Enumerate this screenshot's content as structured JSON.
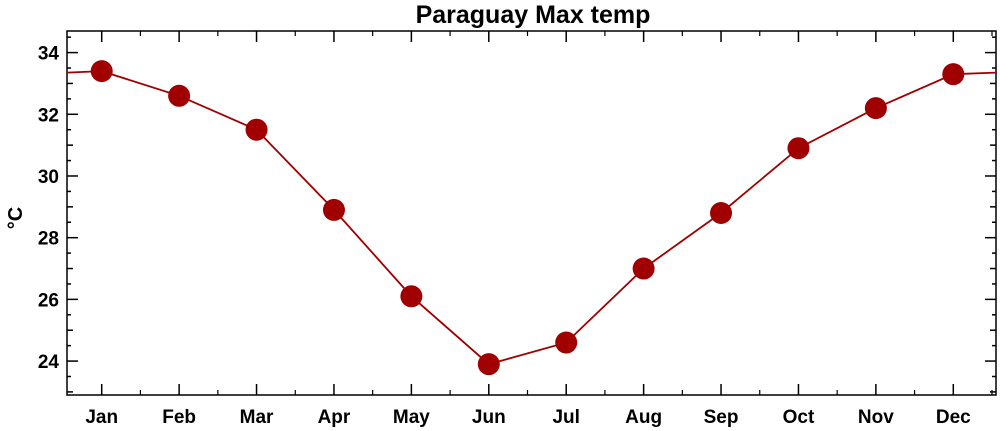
{
  "chart_data": {
    "type": "line",
    "title": "Paraguay Max temp",
    "xlabel": "",
    "ylabel": "°C",
    "categories": [
      "Jan",
      "Feb",
      "Mar",
      "Apr",
      "May",
      "Jun",
      "Jul",
      "Aug",
      "Sep",
      "Oct",
      "Nov",
      "Dec"
    ],
    "series": [
      {
        "values": [
          33.4,
          32.6,
          31.5,
          28.9,
          26.1,
          23.9,
          24.6,
          27.0,
          28.8,
          30.9,
          32.2,
          33.3
        ]
      }
    ],
    "ylim": [
      22.9,
      34.7
    ],
    "yticks": [
      "24",
      "26",
      "28",
      "30",
      "32",
      "34"
    ],
    "grid": false,
    "legend": "none",
    "colors": {
      "series": "#a00000",
      "marker": "#a00000"
    }
  }
}
